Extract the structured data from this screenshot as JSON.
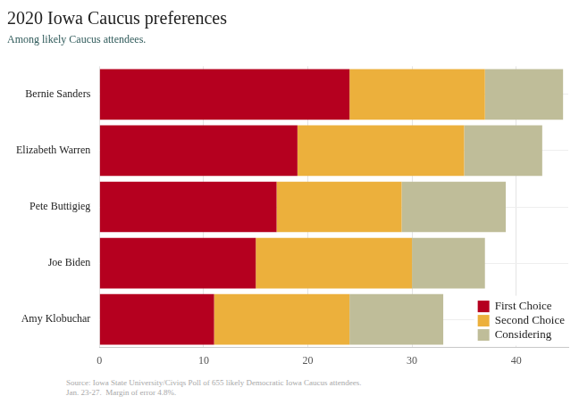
{
  "chart_data": {
    "type": "bar",
    "title": "2020 Iowa Caucus preferences",
    "subtitle": "Among likely Caucus attendees.",
    "categories": [
      "Bernie Sanders",
      "Elizabeth Warren",
      "Pete Buttigieg",
      "Joe Biden",
      "Amy Klobuchar"
    ],
    "series": [
      {
        "name": "First Choice",
        "color": "#b5001f",
        "values": [
          24,
          19,
          17,
          15,
          11
        ]
      },
      {
        "name": "Second Choice",
        "color": "#ecb03c",
        "values": [
          13,
          16,
          12,
          15,
          13
        ]
      },
      {
        "name": "Considering",
        "color": "#bfbd99",
        "values": [
          7.5,
          7.5,
          10,
          7,
          9
        ]
      }
    ],
    "xlim": [
      0,
      45
    ],
    "xticks": [
      0,
      10,
      20,
      30,
      40
    ],
    "orientation": "horizontal",
    "stacked": true,
    "grid": true,
    "legend": "bottom right",
    "source": [
      "Source: Iowa State University/Civiqs Poll of 655 likely Democratic Iowa Caucus attendees.",
      "Jan. 23-27.  Margin of error 4.8%."
    ]
  }
}
